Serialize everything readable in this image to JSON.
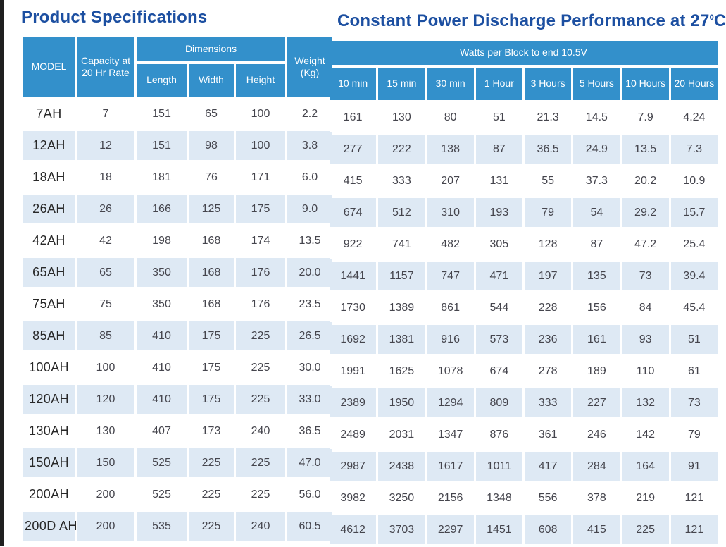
{
  "page": {
    "left_title": "Product Specifications",
    "right_title_prefix": "Constant Power Discharge Performance at 27",
    "right_title_sup": "0",
    "right_title_suffix": "C"
  },
  "colors": {
    "header_blue": "#3390cb",
    "row_stripe_blue": "#dee9f4",
    "title_blue": "#1c4fa1"
  },
  "spec_table": {
    "headers": {
      "model": "MODEL",
      "capacity": "Capacity at 20 Hr Rate",
      "dimensions": "Dimensions",
      "length": "Length",
      "width": "Width",
      "height": "Height",
      "weight": "Weight (Kg)"
    }
  },
  "discharge_table": {
    "span_header": "Watts per Block to end 10.5V",
    "columns": [
      "10 min",
      "15 min",
      "30 min",
      "1 Hour",
      "3 Hours",
      "5 Hours",
      "10 Hours",
      "20 Hours"
    ]
  },
  "rows": [
    {
      "model": "7AH",
      "capacity": "7",
      "length": "151",
      "width": "65",
      "height": "100",
      "weight": "2.2",
      "discharge": [
        "161",
        "130",
        "80",
        "51",
        "21.3",
        "14.5",
        "7.9",
        "4.24"
      ]
    },
    {
      "model": "12AH",
      "capacity": "12",
      "length": "151",
      "width": "98",
      "height": "100",
      "weight": "3.8",
      "discharge": [
        "277",
        "222",
        "138",
        "87",
        "36.5",
        "24.9",
        "13.5",
        "7.3"
      ]
    },
    {
      "model": "18AH",
      "capacity": "18",
      "length": "181",
      "width": "76",
      "height": "171",
      "weight": "6.0",
      "discharge": [
        "415",
        "333",
        "207",
        "131",
        "55",
        "37.3",
        "20.2",
        "10.9"
      ]
    },
    {
      "model": "26AH",
      "capacity": "26",
      "length": "166",
      "width": "125",
      "height": "175",
      "weight": "9.0",
      "discharge": [
        "674",
        "512",
        "310",
        "193",
        "79",
        "54",
        "29.2",
        "15.7"
      ]
    },
    {
      "model": "42AH",
      "capacity": "42",
      "length": "198",
      "width": "168",
      "height": "174",
      "weight": "13.5",
      "discharge": [
        "922",
        "741",
        "482",
        "305",
        "128",
        "87",
        "47.2",
        "25.4"
      ]
    },
    {
      "model": "65AH",
      "capacity": "65",
      "length": "350",
      "width": "168",
      "height": "176",
      "weight": "20.0",
      "discharge": [
        "1441",
        "1157",
        "747",
        "471",
        "197",
        "135",
        "73",
        "39.4"
      ]
    },
    {
      "model": "75AH",
      "capacity": "75",
      "length": "350",
      "width": "168",
      "height": "176",
      "weight": "23.5",
      "discharge": [
        "1730",
        "1389",
        "861",
        "544",
        "228",
        "156",
        "84",
        "45.4"
      ]
    },
    {
      "model": "85AH",
      "capacity": "85",
      "length": "410",
      "width": "175",
      "height": "225",
      "weight": "26.5",
      "discharge": [
        "1692",
        "1381",
        "916",
        "573",
        "236",
        "161",
        "93",
        "51"
      ]
    },
    {
      "model": "100AH",
      "capacity": "100",
      "length": "410",
      "width": "175",
      "height": "225",
      "weight": "30.0",
      "discharge": [
        "1991",
        "1625",
        "1078",
        "674",
        "278",
        "189",
        "110",
        "61"
      ]
    },
    {
      "model": "120AH",
      "capacity": "120",
      "length": "410",
      "width": "175",
      "height": "225",
      "weight": "33.0",
      "discharge": [
        "2389",
        "1950",
        "1294",
        "809",
        "333",
        "227",
        "132",
        "73"
      ]
    },
    {
      "model": "130AH",
      "capacity": "130",
      "length": "407",
      "width": "173",
      "height": "240",
      "weight": "36.5",
      "discharge": [
        "2489",
        "2031",
        "1347",
        "876",
        "361",
        "246",
        "142",
        "79"
      ]
    },
    {
      "model": "150AH",
      "capacity": "150",
      "length": "525",
      "width": "225",
      "height": "225",
      "weight": "47.0",
      "discharge": [
        "2987",
        "2438",
        "1617",
        "1011",
        "417",
        "284",
        "164",
        "91"
      ]
    },
    {
      "model": "200AH",
      "capacity": "200",
      "length": "525",
      "width": "225",
      "height": "225",
      "weight": "56.0",
      "discharge": [
        "3982",
        "3250",
        "2156",
        "1348",
        "556",
        "378",
        "219",
        "121"
      ]
    },
    {
      "model": "200D AH",
      "capacity": "200",
      "length": "535",
      "width": "225",
      "height": "240",
      "weight": "60.5",
      "discharge": [
        "4612",
        "3703",
        "2297",
        "1451",
        "608",
        "415",
        "225",
        "121"
      ]
    }
  ]
}
